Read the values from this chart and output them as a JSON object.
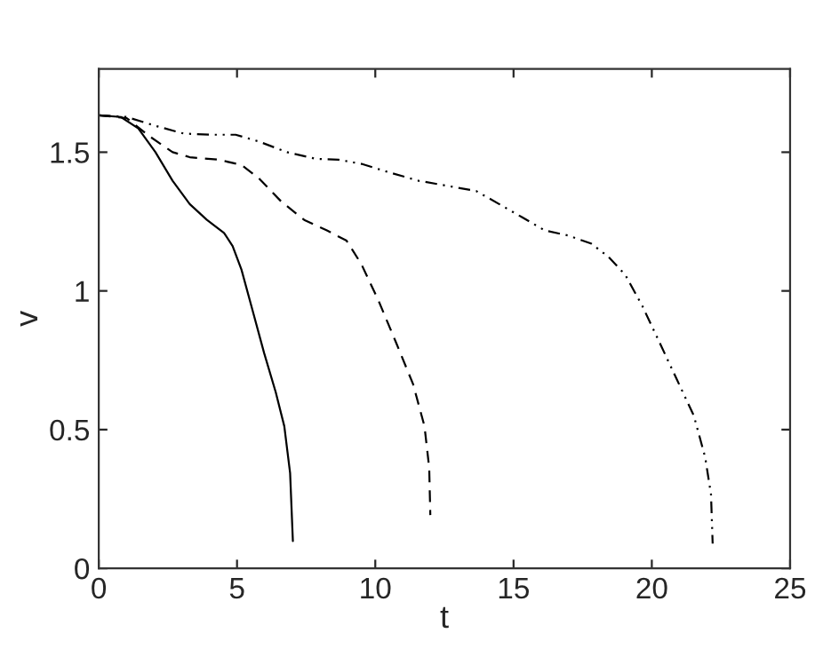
{
  "chart_data": {
    "type": "line",
    "xlabel": "t",
    "ylabel": "v",
    "xlim": [
      0,
      25
    ],
    "ylim": [
      0,
      1.8
    ],
    "xticks": [
      0,
      5,
      10,
      15,
      20,
      25
    ],
    "yticks": [
      0,
      0.5,
      1,
      1.5
    ],
    "grid": false,
    "legend": false,
    "marker": "none",
    "series": [
      {
        "color": "#000000",
        "line_style": "solid",
        "x": [
          0,
          0.8,
          1.43,
          2.05,
          2.67,
          3.29,
          3.91,
          4.53,
          4.84,
          5.16,
          5.57,
          5.98,
          6.4,
          6.71,
          6.92,
          7.02
        ],
        "values": [
          1.633,
          1.627,
          1.586,
          1.5,
          1.397,
          1.313,
          1.256,
          1.209,
          1.162,
          1.077,
          0.927,
          0.776,
          0.635,
          0.512,
          0.343,
          0.098
        ]
      },
      {
        "color": "#000000",
        "line_style": "dashed",
        "x": [
          0,
          1.01,
          1.84,
          2.67,
          3.29,
          4.33,
          5.16,
          5.78,
          6.6,
          7.43,
          8.25,
          8.96,
          9.5,
          10.12,
          10.75,
          11.37,
          11.78,
          11.95,
          11.99
        ],
        "values": [
          1.633,
          1.623,
          1.557,
          1.5,
          1.482,
          1.473,
          1.454,
          1.407,
          1.322,
          1.256,
          1.218,
          1.181,
          1.096,
          0.964,
          0.814,
          0.663,
          0.512,
          0.362,
          0.192
        ]
      },
      {
        "color": "#000000",
        "line_style": "dashdot",
        "x": [
          0,
          1.01,
          2.05,
          3.08,
          4.12,
          4.95,
          5.78,
          6.81,
          7.85,
          8.67,
          9.5,
          10.54,
          11.57,
          12.82,
          13.65,
          14.48,
          15.3,
          16.13,
          16.96,
          17.8,
          18.42,
          19.04,
          19.66,
          20.28,
          20.9,
          21.52,
          21.93,
          22.14,
          22.2
        ],
        "values": [
          1.633,
          1.627,
          1.595,
          1.567,
          1.563,
          1.563,
          1.539,
          1.5,
          1.476,
          1.473,
          1.458,
          1.426,
          1.397,
          1.375,
          1.36,
          1.313,
          1.266,
          1.218,
          1.2,
          1.171,
          1.124,
          1.058,
          0.945,
          0.814,
          0.682,
          0.55,
          0.4,
          0.267,
          0.089
        ]
      }
    ]
  }
}
